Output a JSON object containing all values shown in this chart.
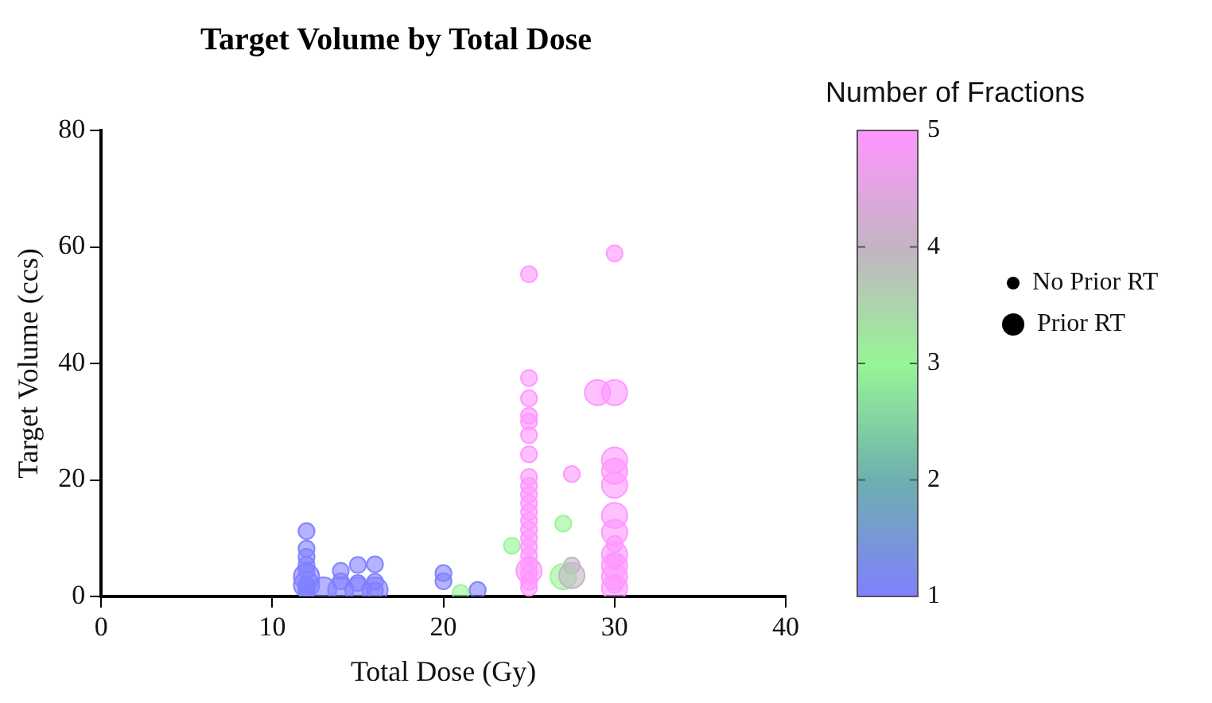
{
  "chart_data": {
    "type": "bubble",
    "title": "Target Volume by Total Dose",
    "xlabel": "Total Dose (Gy)",
    "ylabel": "Target Volume (ccs)",
    "clabel": "Number of Fractions",
    "xlim": [
      0,
      40
    ],
    "xticks": [
      0,
      10,
      20,
      30,
      40
    ],
    "ylim": [
      0,
      80
    ],
    "yticks": [
      0,
      20,
      40,
      60,
      80
    ],
    "clim": [
      1,
      5
    ],
    "cticks": [
      1,
      2,
      3,
      4,
      5
    ],
    "grid": false,
    "legend": "right",
    "marker": "circle",
    "series": [
      {
        "name": "No Prior RT",
        "x": [
          12,
          12,
          12,
          12,
          12,
          12,
          12,
          12,
          14,
          14,
          15,
          15,
          16,
          16,
          16,
          20,
          20,
          21,
          22,
          24,
          25,
          25,
          25,
          25,
          25,
          25,
          25,
          25,
          25,
          25,
          25,
          25,
          25,
          25,
          25,
          25,
          25,
          25,
          25,
          25,
          25,
          27,
          27.5,
          27.5,
          30,
          30,
          30,
          30
        ],
        "values": [
          11.2,
          8.2,
          6.8,
          5.4,
          4.5,
          2,
          1.5,
          1.1,
          4.4,
          2.6,
          5.4,
          2.3,
          5.5,
          2.5,
          1,
          4,
          2.6,
          0.6,
          1.1,
          8.7,
          55.3,
          37.5,
          34,
          31,
          30,
          27.7,
          24.4,
          20.5,
          19,
          17.5,
          16,
          14.5,
          13,
          11.5,
          10,
          8.5,
          7,
          5.5,
          4,
          2.5,
          1.5,
          12.5,
          21,
          5.3,
          58.9,
          9,
          6,
          2
        ],
        "sizes": [
          0.4,
          0.4,
          0.4,
          0.4,
          0.4,
          0.4,
          0.4,
          0.4,
          0.4,
          0.4,
          0.4,
          0.4,
          0.4,
          0.4,
          0.4,
          0.4,
          0.4,
          0.4,
          0.4,
          0.4,
          0.4,
          0.4,
          0.4,
          0.4,
          0.4,
          0.4,
          0.4,
          0.4,
          0.4,
          0.4,
          0.4,
          0.4,
          0.4,
          0.4,
          0.4,
          0.4,
          0.4,
          0.4,
          0.4,
          0.4,
          0.4,
          0.4,
          0.4,
          0.4,
          0.4,
          0.4,
          0.4,
          0.4
        ],
        "cvalues": [
          1,
          1,
          1,
          1,
          1,
          1,
          1,
          1,
          1,
          1,
          1,
          1,
          1,
          1,
          1,
          1,
          1,
          3,
          1,
          3,
          5,
          5,
          5,
          5,
          5,
          5,
          5,
          5,
          5,
          5,
          5,
          5,
          5,
          5,
          5,
          5,
          5,
          5,
          5,
          5,
          5,
          3,
          5,
          4,
          5,
          5,
          5,
          5
        ],
        "colors": [
          "#8080ff",
          "#8080ff",
          "#8080ff",
          "#8080ff",
          "#8080ff",
          "#8080ff",
          "#8080ff",
          "#8080ff",
          "#8080ff",
          "#8080ff",
          "#8080ff",
          "#8080ff",
          "#8080ff",
          "#8080ff",
          "#8080ff",
          "#8080ff",
          "#8080ff",
          "#96f596",
          "#8080ff",
          "#96f596",
          "#ff96ff",
          "#ff96ff",
          "#ff96ff",
          "#ff96ff",
          "#ff96ff",
          "#ff96ff",
          "#ff96ff",
          "#ff96ff",
          "#ff96ff",
          "#ff96ff",
          "#ff96ff",
          "#ff96ff",
          "#ff96ff",
          "#ff96ff",
          "#ff96ff",
          "#ff96ff",
          "#ff96ff",
          "#ff96ff",
          "#ff96ff",
          "#ff96ff",
          "#ff96ff",
          "#96f596",
          "#ff96ff",
          "#c3b4c3",
          "#ff96ff",
          "#ff96ff",
          "#ff96ff",
          "#ff96ff"
        ]
      },
      {
        "name": "Prior RT",
        "x": [
          29,
          12,
          12,
          13,
          14,
          15,
          16,
          25,
          27,
          27.5,
          30,
          30,
          30,
          30,
          30,
          30,
          30,
          30,
          30,
          30
        ],
        "values": [
          35,
          3.4,
          2,
          1.1,
          1.1,
          1.1,
          1.1,
          4.4,
          3.4,
          3.6,
          35,
          23.4,
          21.5,
          19.1,
          13.9,
          11,
          7.2,
          5.3,
          3.4,
          1.5
        ],
        "sizes": [
          1,
          1,
          1,
          1,
          1,
          1,
          1,
          1,
          1,
          1,
          1,
          1,
          1,
          1,
          1,
          1,
          1,
          1,
          1,
          1
        ],
        "cvalues": [
          5,
          1,
          1,
          1,
          1,
          1,
          1,
          5,
          3,
          4,
          5,
          5,
          5,
          5,
          5,
          5,
          5,
          5,
          5,
          5
        ],
        "colors": [
          "#ff96ff",
          "#8080ff",
          "#8080ff",
          "#8080ff",
          "#8080ff",
          "#8080ff",
          "#8080ff",
          "#ff96ff",
          "#96f596",
          "#c3b4c3",
          "#ff96ff",
          "#ff96ff",
          "#ff96ff",
          "#ff96ff",
          "#ff96ff",
          "#ff96ff",
          "#ff96ff",
          "#ff96ff",
          "#ff96ff",
          "#ff96ff"
        ]
      }
    ]
  }
}
